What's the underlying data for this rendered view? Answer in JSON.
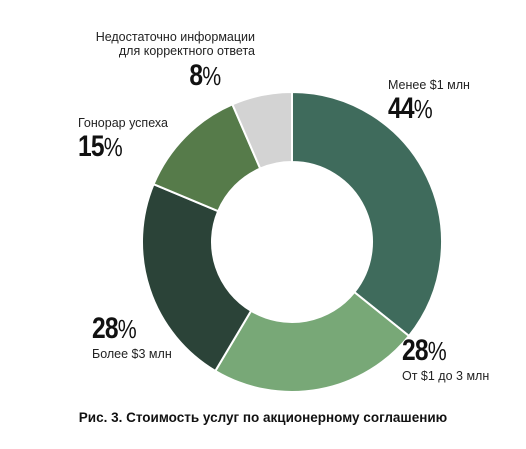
{
  "chart_data": {
    "type": "pie",
    "donut": true,
    "slices": [
      {
        "label": "Менее $1 млн",
        "value": 44,
        "value_text": "44",
        "color": "#3f6b5c"
      },
      {
        "label": "От $1 до 3 млн",
        "value": 28,
        "value_text": "28",
        "color": "#78a877"
      },
      {
        "label": "Более $3 млн",
        "value": 28,
        "value_text": "28",
        "color": "#2b4338"
      },
      {
        "label": "Гонорар успеха",
        "value": 15,
        "value_text": "15",
        "color": "#567b4a"
      },
      {
        "label_line1": "Недостаточно информации",
        "label_line2": "для корректного ответа",
        "value": 8,
        "value_text": "8",
        "color": "#d3d3d3"
      }
    ],
    "percent_sign": "%"
  },
  "caption": "Рис. 3. Стоимость услуг по акционерному соглашению"
}
